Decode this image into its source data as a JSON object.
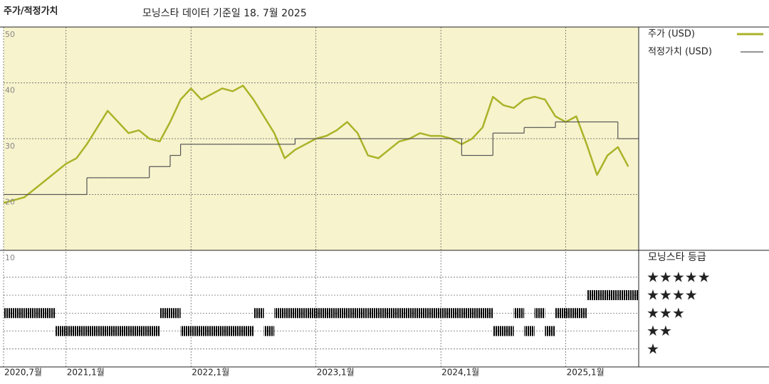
{
  "header": {
    "title": "주가/적정가치",
    "subtitle": "모닝스타 데이터 기준일 18. 7월 2025"
  },
  "chart_data": {
    "type": "line",
    "x": [
      "2020-07",
      "2020-08",
      "2020-09",
      "2020-10",
      "2020-11",
      "2020-12",
      "2021-01",
      "2021-02",
      "2021-03",
      "2021-04",
      "2021-05",
      "2021-06",
      "2021-07",
      "2021-08",
      "2021-09",
      "2021-10",
      "2021-11",
      "2021-12",
      "2022-01",
      "2022-02",
      "2022-03",
      "2022-04",
      "2022-05",
      "2022-06",
      "2022-07",
      "2022-08",
      "2022-09",
      "2022-10",
      "2022-11",
      "2022-12",
      "2023-01",
      "2023-02",
      "2023-03",
      "2023-04",
      "2023-05",
      "2023-06",
      "2023-07",
      "2023-08",
      "2023-09",
      "2023-10",
      "2023-11",
      "2023-12",
      "2024-01",
      "2024-02",
      "2024-03",
      "2024-04",
      "2024-05",
      "2024-06",
      "2024-07",
      "2024-08",
      "2024-09",
      "2024-10",
      "2024-11",
      "2024-12",
      "2025-01",
      "2025-02",
      "2025-03",
      "2025-04",
      "2025-05",
      "2025-06",
      "2025-07"
    ],
    "xlim": [
      "2020-07",
      "2025-08"
    ],
    "xticks": [
      {
        "value": "2020-07",
        "label": "2020,7월"
      },
      {
        "value": "2021-01",
        "label": "2021,1월"
      },
      {
        "value": "2022-01",
        "label": "2022,1월"
      },
      {
        "value": "2023-01",
        "label": "2023,1월"
      },
      {
        "value": "2024-01",
        "label": "2024,1월"
      },
      {
        "value": "2025-01",
        "label": "2025,1월"
      }
    ],
    "ylim": [
      10,
      50
    ],
    "yticks": [
      10,
      20,
      30,
      40,
      50
    ],
    "grid": true,
    "series": [
      {
        "name": "주가 (USD)",
        "color": "#aab328",
        "values": [
          18.5,
          19,
          19.5,
          21,
          22.5,
          24,
          25.5,
          26.5,
          29,
          32,
          35,
          33,
          31,
          31.5,
          30,
          29.5,
          33,
          37,
          39,
          37,
          38,
          39,
          38.5,
          39.5,
          37,
          34,
          31,
          26.5,
          28,
          29,
          30,
          30.5,
          31.5,
          33,
          31,
          27,
          26.5,
          28,
          29.5,
          30,
          31,
          30.5,
          30.5,
          30,
          29,
          30,
          32,
          37.5,
          36,
          35.5,
          37,
          37.5,
          37,
          34,
          33,
          34,
          29,
          23.5,
          27,
          28.5,
          25
        ]
      },
      {
        "name": "적정가치 (USD)",
        "color": "#555555",
        "step": true,
        "values": [
          20,
          20,
          20,
          20,
          20,
          20,
          20,
          20,
          23,
          23,
          23,
          23,
          23,
          23,
          25,
          25,
          27,
          29,
          29,
          29,
          29,
          29,
          29,
          29,
          29,
          29,
          29,
          29,
          30,
          30,
          30,
          30,
          30,
          30,
          30,
          30,
          30,
          30,
          30,
          30,
          30,
          30,
          30,
          30,
          27,
          27,
          27,
          31,
          31,
          31,
          32,
          32,
          32,
          33,
          33,
          33,
          33,
          33,
          33,
          30,
          30
        ]
      }
    ],
    "rating": {
      "title": "모닝스타 등급",
      "color": "#000000",
      "lim": [
        0,
        6.5
      ],
      "ticks": [
        {
          "value": 5,
          "label": "★★★★★"
        },
        {
          "value": 4,
          "label": "★★★★"
        },
        {
          "value": 3,
          "label": "★★★"
        },
        {
          "value": 2,
          "label": "★★"
        },
        {
          "value": 1,
          "label": "★"
        }
      ],
      "values": [
        3,
        3,
        3,
        3,
        3,
        2,
        2,
        2,
        2,
        2,
        2,
        2,
        2,
        2,
        2,
        3,
        3,
        2,
        2,
        2,
        2,
        2,
        2,
        2,
        3,
        2,
        3,
        3,
        3,
        3,
        3,
        3,
        3,
        3,
        3,
        3,
        3,
        3,
        3,
        3,
        3,
        3,
        3,
        3,
        3,
        3,
        3,
        2,
        2,
        3,
        2,
        3,
        2,
        3,
        3,
        3,
        4,
        4,
        4,
        4,
        4
      ]
    }
  }
}
